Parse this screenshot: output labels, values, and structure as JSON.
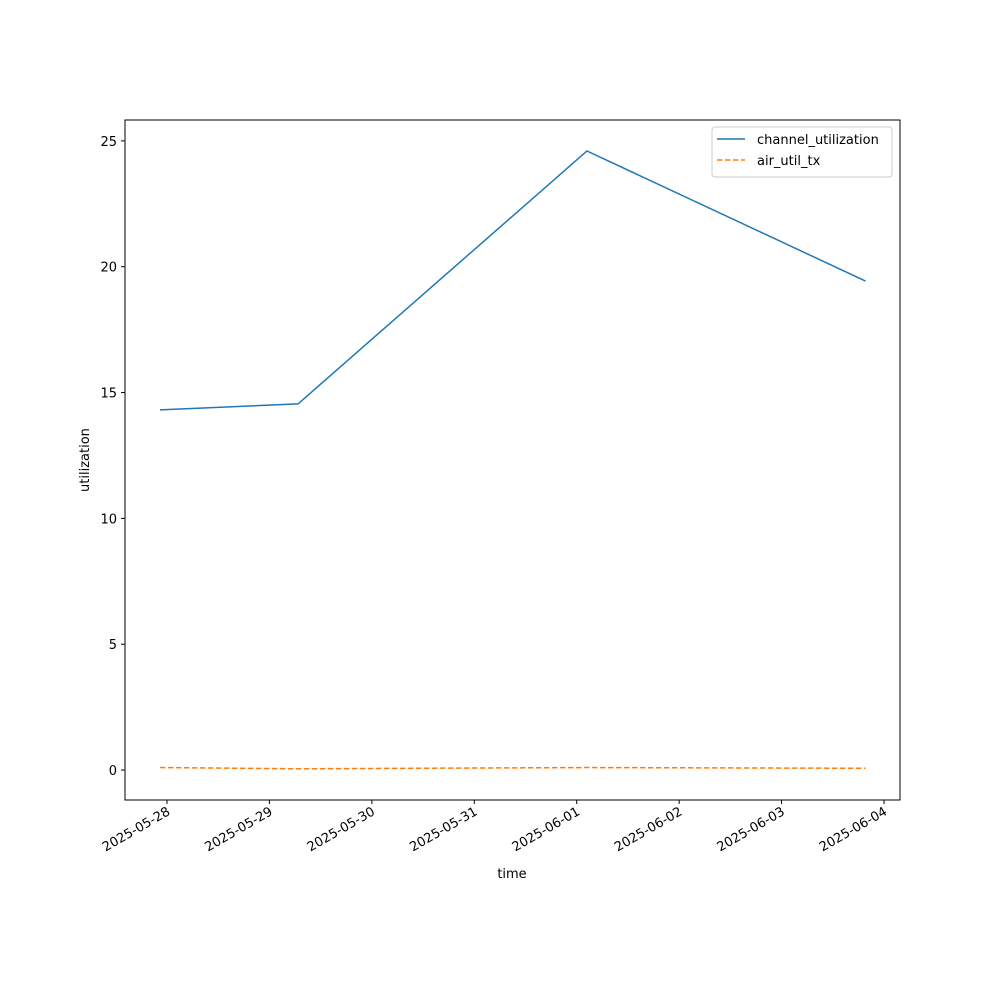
{
  "chart_data": {
    "type": "line",
    "xlabel": "time",
    "ylabel": "utilization",
    "x": [
      "2025-05-27T22:22",
      "2025-05-29T06:43",
      "2025-06-01T02:24",
      "2025-06-03T19:40"
    ],
    "series": [
      {
        "name": "channel_utilization",
        "color": "#1f77b4",
        "linestyle": "solid",
        "values": [
          14.31,
          14.55,
          24.6,
          19.43
        ]
      },
      {
        "name": "air_util_tx",
        "color": "#ff7f0e",
        "linestyle": "dashed",
        "values": [
          0.1,
          0.05,
          0.1,
          0.07
        ]
      }
    ],
    "xlim": [
      "2025-05-27T14:10",
      "2025-06-04T03:45"
    ],
    "xticks": [
      "2025-05-28",
      "2025-05-29",
      "2025-05-30",
      "2025-05-31",
      "2025-06-01",
      "2025-06-02",
      "2025-06-03",
      "2025-06-04"
    ],
    "ylim": [
      -1.19,
      25.83
    ],
    "yticks": [
      0,
      5,
      10,
      15,
      20,
      25
    ],
    "grid": false,
    "legend": "upper right"
  }
}
